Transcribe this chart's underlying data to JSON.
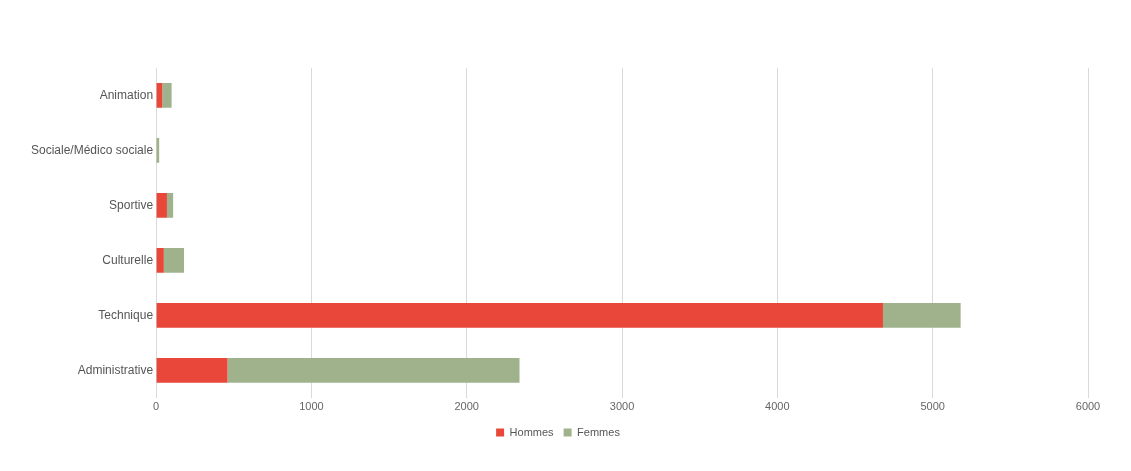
{
  "chart_data": {
    "type": "bar",
    "orientation": "horizontal",
    "stacked": true,
    "categories": [
      "Animation",
      "Sociale/Médico sociale",
      "Sportive",
      "Culturelle",
      "Technique",
      "Administrative"
    ],
    "series": [
      {
        "name": "Hommes",
        "color": "#e8473a",
        "values": [
          40,
          0,
          70,
          50,
          4680,
          460
        ]
      },
      {
        "name": "Femmes",
        "color": "#9fb28c",
        "values": [
          60,
          20,
          40,
          130,
          500,
          1880
        ]
      }
    ],
    "xlim": [
      0,
      6000
    ],
    "xticks": [
      0,
      1000,
      2000,
      3000,
      4000,
      5000,
      6000
    ],
    "grid": "x",
    "legend": "bottom"
  }
}
